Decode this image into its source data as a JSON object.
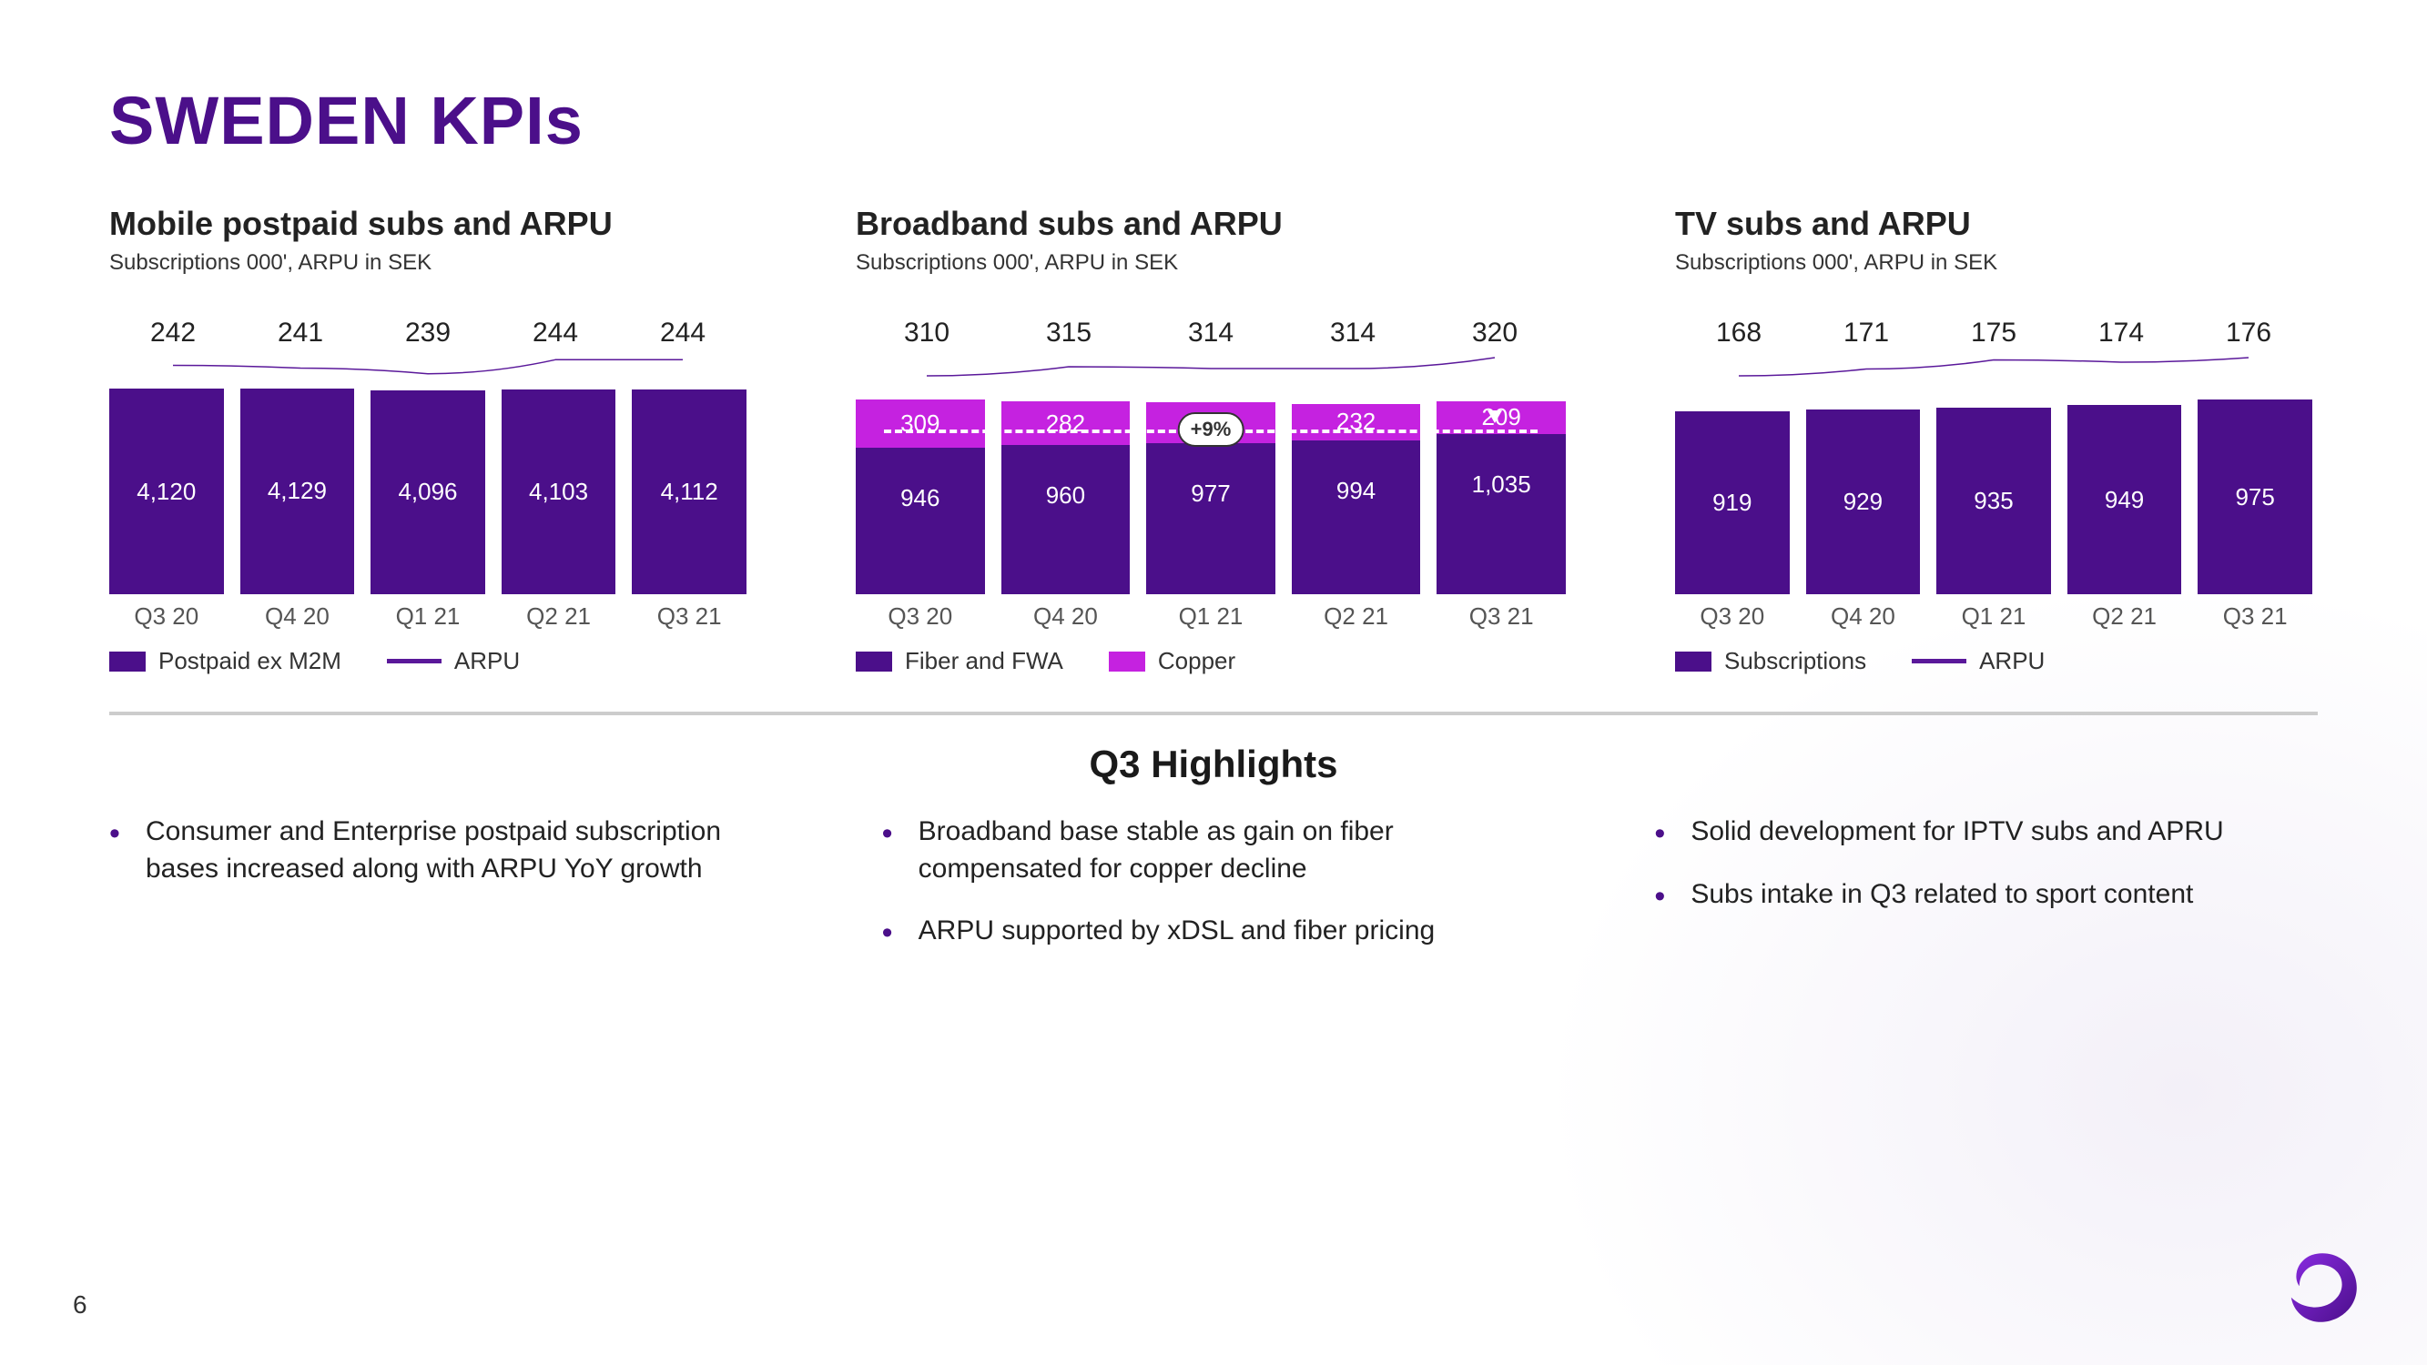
{
  "title": "SWEDEN KPIs",
  "page_number": "6",
  "colors": {
    "primary": "#4b0f8a",
    "accent": "#c522e0",
    "line": "#5a189a",
    "text": "#222222",
    "muted": "#555555",
    "separator": "#cccccc",
    "bg": "#ffffff"
  },
  "charts": [
    {
      "id": "mobile",
      "title": "Mobile postpaid subs and ARPU",
      "subtitle": "Subscriptions 000', ARPU in SEK",
      "categories": [
        "Q3 20",
        "Q4 20",
        "Q1 21",
        "Q2 21",
        "Q3 21"
      ],
      "bar_max": 4200,
      "series": [
        {
          "name": "Postpaid ex M2M",
          "color": "#4b0f8a",
          "values": [
            4120,
            4129,
            4096,
            4103,
            4112
          ],
          "labels": [
            "4,120",
            "4,129",
            "4,096",
            "4,103",
            "4,112"
          ]
        }
      ],
      "arpu": {
        "label": "ARPU",
        "color": "#5a189a",
        "values": [
          242,
          241,
          239,
          244,
          244
        ],
        "y_min": 235,
        "y_max": 248
      },
      "legend": [
        {
          "type": "box",
          "color": "#4b0f8a",
          "label": "Postpaid ex M2M"
        },
        {
          "type": "line",
          "color": "#5a189a",
          "label": "ARPU"
        }
      ]
    },
    {
      "id": "broadband",
      "title": "Broadband subs and ARPU",
      "subtitle": "Subscriptions 000', ARPU in SEK",
      "categories": [
        "Q3 20",
        "Q4 20",
        "Q1 21",
        "Q2 21",
        "Q3 21"
      ],
      "bar_max": 1350,
      "stacked": true,
      "series": [
        {
          "name": "Fiber and FWA",
          "color": "#4b0f8a",
          "values": [
            946,
            960,
            977,
            994,
            1035
          ],
          "labels": [
            "946",
            "960",
            "977",
            "994",
            "1,035"
          ]
        },
        {
          "name": "Copper",
          "color": "#c522e0",
          "values": [
            309,
            282,
            259,
            232,
            209
          ],
          "labels": [
            "309",
            "282",
            "259",
            "232",
            "209"
          ]
        }
      ],
      "arpu": {
        "label": "ARPU",
        "color": "#5a189a",
        "values": [
          310,
          315,
          314,
          314,
          320
        ],
        "y_min": 305,
        "y_max": 325
      },
      "growth_badge": "+9%",
      "legend": [
        {
          "type": "box",
          "color": "#4b0f8a",
          "label": "Fiber and FWA"
        },
        {
          "type": "box",
          "color": "#c522e0",
          "label": "Copper"
        }
      ]
    },
    {
      "id": "tv",
      "title": "TV subs and ARPU",
      "subtitle": "Subscriptions 000', ARPU in SEK",
      "categories": [
        "Q3 20",
        "Q4 20",
        "Q1 21",
        "Q2 21",
        "Q3 21"
      ],
      "bar_max": 1050,
      "series": [
        {
          "name": "Subscriptions",
          "color": "#4b0f8a",
          "values": [
            919,
            929,
            935,
            949,
            975
          ],
          "labels": [
            "919",
            "929",
            "935",
            "949",
            "975"
          ]
        }
      ],
      "arpu": {
        "label": "ARPU",
        "color": "#5a189a",
        "values": [
          168,
          171,
          175,
          174,
          176
        ],
        "y_min": 164,
        "y_max": 180
      },
      "legend": [
        {
          "type": "box",
          "color": "#4b0f8a",
          "label": "Subscriptions"
        },
        {
          "type": "line",
          "color": "#5a189a",
          "label": "ARPU"
        }
      ]
    }
  ],
  "highlights_title": "Q3 Highlights",
  "highlights": [
    [
      "Consumer and Enterprise postpaid subscription bases increased along with ARPU YoY growth"
    ],
    [
      "Broadband base stable as gain on fiber compensated for copper decline",
      "ARPU supported by xDSL and fiber pricing"
    ],
    [
      "Solid development for IPTV subs and APRU",
      "Subs intake in Q3 related to sport content"
    ]
  ]
}
